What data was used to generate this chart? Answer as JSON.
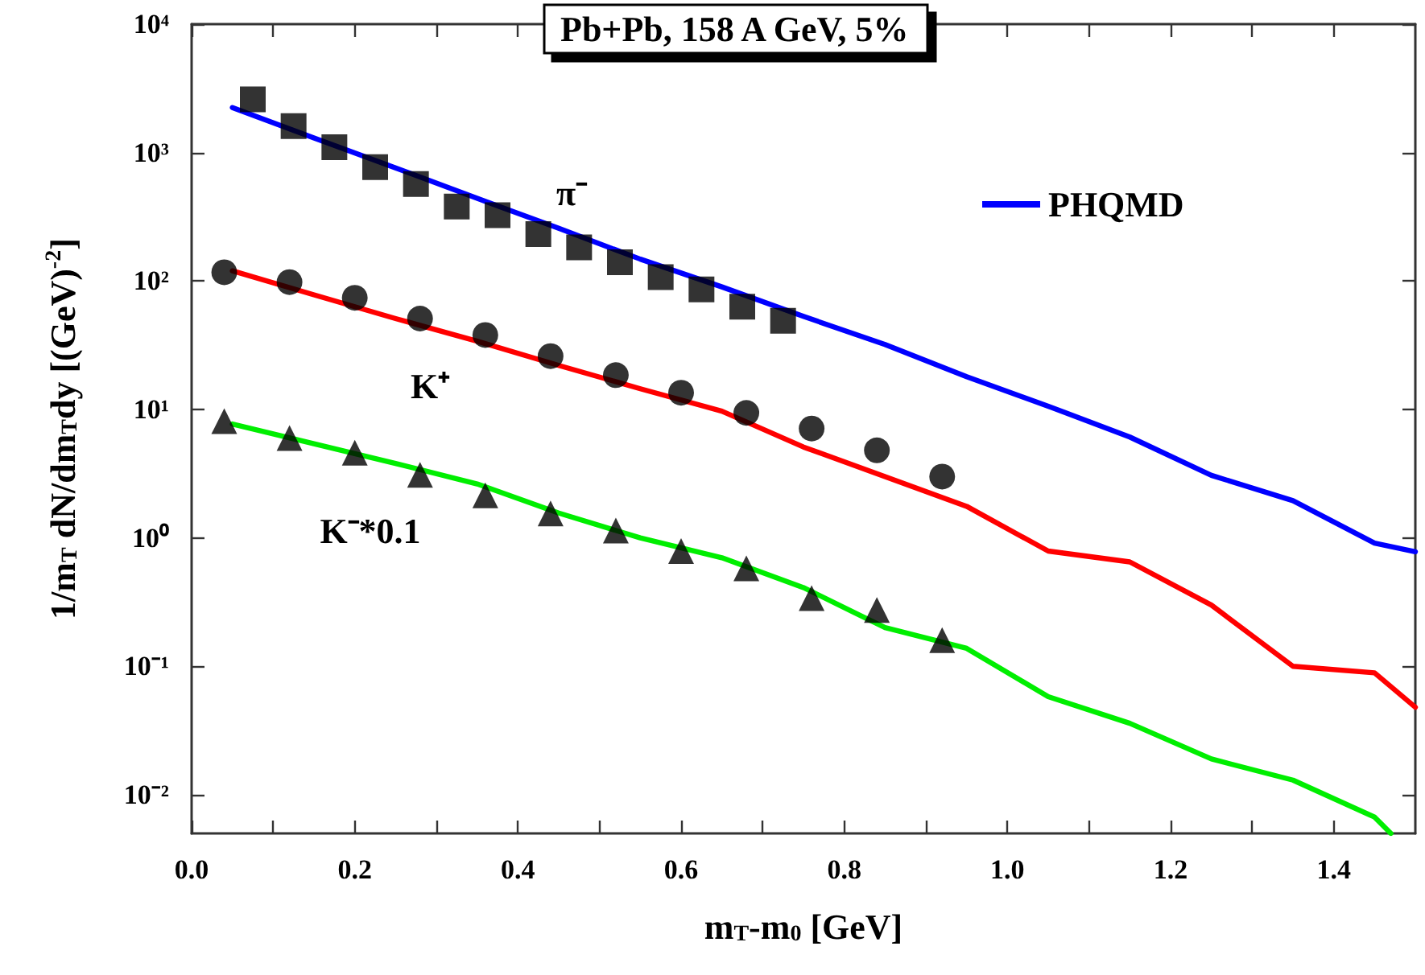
{
  "chart_data": {
    "type": "line",
    "title": "Pb+Pb, 158 A GeV, 5%",
    "xlabel": "m$_{T}$-m$_{0}$ [GeV]",
    "ylabel": "1/m$_{T}$ dN/dm$_{T}$dy [(GeV)$^{-2}$]",
    "log": "y",
    "xlim": [
      0,
      1.5
    ],
    "xticks": [
      {
        "value": 0,
        "label": "0.0"
      },
      {
        "value": 0.1,
        "label": null
      },
      {
        "value": 0.2,
        "label": "0.2"
      },
      {
        "value": 0.3,
        "label": null
      },
      {
        "value": 0.4,
        "label": "0.4"
      },
      {
        "value": 0.5,
        "label": null
      },
      {
        "value": 0.6,
        "label": "0.6"
      },
      {
        "value": 0.7,
        "label": null
      },
      {
        "value": 0.8,
        "label": "0.8"
      },
      {
        "value": 0.9,
        "label": null
      },
      {
        "value": 1.0,
        "label": "1.0"
      },
      {
        "value": 1.1,
        "label": null
      },
      {
        "value": 1.2,
        "label": "1.2"
      },
      {
        "value": 1.3,
        "label": null
      },
      {
        "value": 1.4,
        "label": "1.4"
      }
    ],
    "ylim": [
      0.005,
      10000
    ],
    "yticks": [
      {
        "value": 0.01,
        "label": "10⁻²"
      },
      {
        "value": 0.1,
        "label": "10⁻¹"
      },
      {
        "value": 1,
        "label": "10⁰"
      },
      {
        "value": 10,
        "label": "10¹"
      },
      {
        "value": 100,
        "label": "10²"
      },
      {
        "value": 1000,
        "label": "10³"
      },
      {
        "value": 10000,
        "label": "10⁴"
      }
    ],
    "grid": false,
    "legend": "top right",
    "annotations": [
      "π⁻",
      "K⁺",
      "K⁻*0.1"
    ],
    "series": [
      {
        "name": "PHQMD",
        "color": "#0000ff",
        "x": [
          0.05,
          0.15,
          0.25,
          0.35,
          0.45,
          0.55,
          0.65,
          0.75,
          0.85,
          0.95,
          1.05,
          1.15,
          1.25,
          1.35,
          1.45,
          1.5
        ],
        "values": [
          2240,
          1300,
          760,
          440,
          257,
          148,
          90,
          53,
          32,
          18,
          10.6,
          6.1,
          3.07,
          1.95,
          0.91,
          0.78
        ]
      },
      {
        "color": "#ff0000",
        "x": [
          0.05,
          0.15,
          0.25,
          0.35,
          0.45,
          0.55,
          0.65,
          0.75,
          0.85,
          0.95,
          1.05,
          1.15,
          1.25,
          1.35,
          1.45,
          1.5
        ],
        "values": [
          120,
          78,
          51,
          34,
          22,
          14.5,
          9.7,
          5.1,
          3.0,
          1.76,
          0.79,
          0.65,
          0.3,
          0.1,
          0.089,
          0.048
        ]
      },
      {
        "color": "#00ee00",
        "x": [
          0.05,
          0.15,
          0.25,
          0.35,
          0.45,
          0.55,
          0.65,
          0.75,
          0.85,
          0.95,
          1.05,
          1.15,
          1.25,
          1.35,
          1.45,
          1.47
        ],
        "values": [
          7.7,
          5.4,
          3.8,
          2.63,
          1.56,
          1.0,
          0.7,
          0.41,
          0.2,
          0.138,
          0.058,
          0.036,
          0.019,
          0.013,
          0.0067,
          0.005
        ]
      },
      {
        "type": "scatter",
        "marker": "square",
        "color": "#000000",
        "x": [
          0.075,
          0.125,
          0.175,
          0.225,
          0.275,
          0.325,
          0.375,
          0.425,
          0.475,
          0.525,
          0.575,
          0.625,
          0.675,
          0.725
        ],
        "values": [
          2600,
          1610,
          1100,
          770,
          570,
          380,
          325,
          232,
          183,
          140,
          107,
          86,
          63,
          49
        ]
      },
      {
        "type": "scatter",
        "marker": "circle",
        "color": "#000000",
        "x": [
          0.04,
          0.12,
          0.2,
          0.28,
          0.36,
          0.44,
          0.52,
          0.6,
          0.68,
          0.76,
          0.84,
          0.92
        ],
        "values": [
          117,
          98,
          74,
          51,
          38,
          26,
          18.5,
          13.5,
          9.4,
          7.1,
          4.8,
          3.0
        ]
      },
      {
        "type": "scatter",
        "marker": "triangle",
        "color": "#000000",
        "x": [
          0.04,
          0.12,
          0.2,
          0.28,
          0.36,
          0.44,
          0.52,
          0.6,
          0.68,
          0.76,
          0.84,
          0.92
        ],
        "values": [
          8.1,
          6.0,
          4.6,
          3.1,
          2.14,
          1.55,
          1.14,
          0.79,
          0.58,
          0.34,
          0.275,
          0.16
        ]
      }
    ]
  }
}
